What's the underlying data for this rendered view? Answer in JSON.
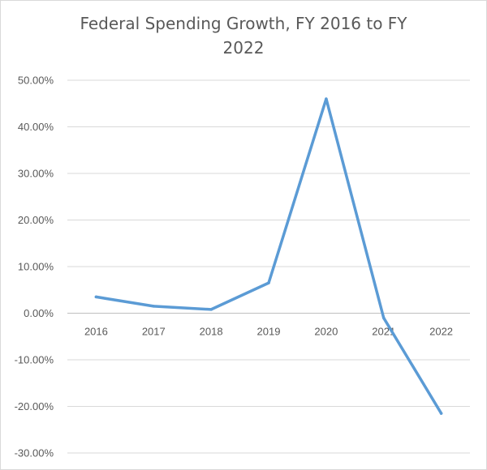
{
  "chart_data": {
    "type": "line",
    "title": "Federal Spending Growth, FY 2016 to FY\n2022",
    "categories": [
      "2016",
      "2017",
      "2018",
      "2019",
      "2020",
      "2021",
      "2022"
    ],
    "series": [
      {
        "values": [
          0.035,
          0.015,
          0.008,
          0.065,
          0.46,
          -0.01,
          -0.215
        ],
        "color": "#5b9bd5"
      }
    ],
    "ylim": [
      -0.3,
      0.5
    ],
    "yticks": [
      0.5,
      0.4,
      0.3,
      0.2,
      0.1,
      0.0,
      -0.1,
      -0.2,
      -0.3
    ],
    "ytick_labels": [
      "50.00%",
      "40.00%",
      "30.00%",
      "20.00%",
      "10.00%",
      "0.00%",
      "-10.00%",
      "-20.00%",
      "-30.00%"
    ],
    "grid": true,
    "legend": "none"
  }
}
